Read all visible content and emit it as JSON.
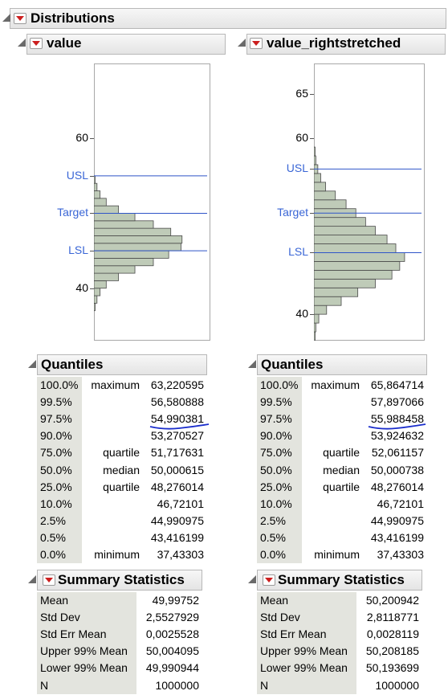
{
  "distributions": {
    "title": "Distributions"
  },
  "panels": [
    {
      "title": "value",
      "yticks": [
        {
          "label": "60",
          "value": 60,
          "spec": false
        },
        {
          "label": "USL",
          "value": 55,
          "spec": true
        },
        {
          "label": "Target",
          "value": 50,
          "spec": true
        },
        {
          "label": "LSL",
          "value": 45,
          "spec": true
        },
        {
          "label": "40",
          "value": 40,
          "spec": false
        }
      ],
      "yrange": [
        33,
        70
      ],
      "spec_lines": [
        55,
        50,
        45
      ],
      "bins": {
        "start": 37,
        "width": 1,
        "counts": [
          0.004,
          0.03,
          0.06,
          0.12,
          0.24,
          0.4,
          0.58,
          0.73,
          0.85,
          0.86,
          0.75,
          0.58,
          0.4,
          0.24,
          0.12,
          0.06,
          0.03,
          0.01
        ]
      },
      "quantiles": {
        "title": "Quantiles",
        "rows": [
          {
            "pct": "100.0%",
            "label": "maximum",
            "value": "63,220595"
          },
          {
            "pct": "99.5%",
            "label": "",
            "value": "56,580888"
          },
          {
            "pct": "97.5%",
            "label": "",
            "value": "54,990381"
          },
          {
            "pct": "90.0%",
            "label": "",
            "value": "53,270527"
          },
          {
            "pct": "75.0%",
            "label": "quartile",
            "value": "51,717631"
          },
          {
            "pct": "50.0%",
            "label": "median",
            "value": "50,000615"
          },
          {
            "pct": "25.0%",
            "label": "quartile",
            "value": "48,276014"
          },
          {
            "pct": "10.0%",
            "label": "",
            "value": "46,72101"
          },
          {
            "pct": "2.5%",
            "label": "",
            "value": "44,990975"
          },
          {
            "pct": "0.5%",
            "label": "",
            "value": "43,416199"
          },
          {
            "pct": "0.0%",
            "label": "minimum",
            "value": "37,43303"
          }
        ]
      },
      "summary": {
        "title": "Summary Statistics",
        "rows": [
          {
            "label": "Mean",
            "value": "49,99752"
          },
          {
            "label": "Std Dev",
            "value": "2,5527929"
          },
          {
            "label": "Std Err Mean",
            "value": "0,0025528"
          },
          {
            "label": "Upper 99% Mean",
            "value": "50,004095"
          },
          {
            "label": "Lower 99% Mean",
            "value": "49,990944"
          },
          {
            "label": "N",
            "value": "1000000"
          }
        ]
      }
    },
    {
      "title": "value_rightstretched",
      "yticks": [
        {
          "label": "65",
          "value": 65,
          "spec": false
        },
        {
          "label": "60",
          "value": 60,
          "spec": false
        },
        {
          "label": "USL",
          "value": 56.5,
          "spec": true
        },
        {
          "label": "Target",
          "value": 51.5,
          "spec": true
        },
        {
          "label": "LSL",
          "value": 47,
          "spec": true
        },
        {
          "label": "40",
          "value": 40,
          "spec": false
        }
      ],
      "yrange": [
        37,
        68.5
      ],
      "spec_lines": [
        56.5,
        51.5,
        47
      ],
      "bins": {
        "start": 37,
        "width": 1,
        "counts": [
          0.005,
          0.02,
          0.05,
          0.13,
          0.28,
          0.45,
          0.63,
          0.8,
          0.88,
          0.93,
          0.84,
          0.75,
          0.63,
          0.53,
          0.43,
          0.33,
          0.22,
          0.12,
          0.07,
          0.04,
          0.02,
          0.01
        ]
      },
      "quantiles": {
        "title": "Quantiles",
        "rows": [
          {
            "pct": "100.0%",
            "label": "maximum",
            "value": "65,864714"
          },
          {
            "pct": "99.5%",
            "label": "",
            "value": "57,897066"
          },
          {
            "pct": "97.5%",
            "label": "",
            "value": "55,988458"
          },
          {
            "pct": "90.0%",
            "label": "",
            "value": "53,924632"
          },
          {
            "pct": "75.0%",
            "label": "quartile",
            "value": "52,061157"
          },
          {
            "pct": "50.0%",
            "label": "median",
            "value": "50,000738"
          },
          {
            "pct": "25.0%",
            "label": "quartile",
            "value": "48,276014"
          },
          {
            "pct": "10.0%",
            "label": "",
            "value": "46,72101"
          },
          {
            "pct": "2.5%",
            "label": "",
            "value": "44,990975"
          },
          {
            "pct": "0.5%",
            "label": "",
            "value": "43,416199"
          },
          {
            "pct": "0.0%",
            "label": "minimum",
            "value": "37,43303"
          }
        ]
      },
      "summary": {
        "title": "Summary Statistics",
        "rows": [
          {
            "label": "Mean",
            "value": "50,200942"
          },
          {
            "label": "Std Dev",
            "value": "2,8118771"
          },
          {
            "label": "Std Err Mean",
            "value": "0,0028119"
          },
          {
            "label": "Upper 99% Mean",
            "value": "50,208185"
          },
          {
            "label": "Lower 99% Mean",
            "value": "50,193699"
          },
          {
            "label": "N",
            "value": "1000000"
          }
        ]
      }
    }
  ],
  "colors": {
    "bar_fill": "#bfcbb8",
    "bar_stroke": "#4a4a4a",
    "spec_line": "#2f55c8",
    "spec_label": "#3a66d6",
    "red_button": "#cc1f1f",
    "annotation": "#1a2dcc"
  },
  "icons": {
    "disclosure": "disclosure-triangle-icon",
    "menu": "red-triangle-menu-icon"
  }
}
